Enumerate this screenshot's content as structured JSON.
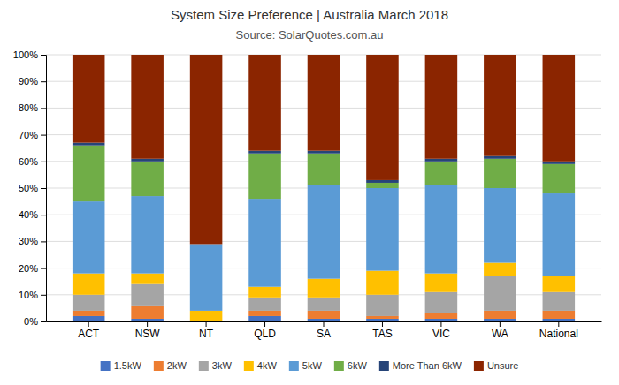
{
  "chart_data": {
    "type": "bar",
    "stacked": true,
    "title": "System Size Preference  |  Australia March 2018",
    "subtitle": "Source: SolarQuotes.com.au",
    "categories": [
      "ACT",
      "NSW",
      "NT",
      "QLD",
      "SA",
      "TAS",
      "VIC",
      "WA",
      "National"
    ],
    "series": [
      {
        "name": "1.5kW",
        "color": "#4472C4",
        "values": [
          2,
          1,
          0,
          2,
          1,
          1,
          1,
          1,
          1
        ]
      },
      {
        "name": "2kW",
        "color": "#ED7D31",
        "values": [
          2,
          5,
          0,
          2,
          3,
          1,
          2,
          3,
          3
        ]
      },
      {
        "name": "3kW",
        "color": "#A5A5A5",
        "values": [
          6,
          8,
          0,
          5,
          5,
          8,
          8,
          13,
          7
        ]
      },
      {
        "name": "4kW",
        "color": "#FFC000",
        "values": [
          8,
          4,
          4,
          4,
          7,
          9,
          7,
          5,
          6
        ]
      },
      {
        "name": "5kW",
        "color": "#5B9BD5",
        "values": [
          27,
          29,
          25,
          33,
          35,
          31,
          33,
          28,
          31
        ]
      },
      {
        "name": "6kW",
        "color": "#70AD47",
        "values": [
          21,
          13,
          0,
          17,
          12,
          2,
          9,
          11,
          11
        ]
      },
      {
        "name": "More Than 6kW",
        "color": "#264478",
        "values": [
          1,
          1,
          0,
          1,
          1,
          1,
          1,
          1,
          1
        ]
      },
      {
        "name": "Unsure",
        "color": "#8B2500",
        "values": [
          33,
          39,
          71,
          36,
          36,
          47,
          39,
          38,
          40
        ]
      }
    ],
    "ylim": [
      0,
      100
    ],
    "yticks": [
      {
        "value": 0,
        "label": "0%"
      },
      {
        "value": 10,
        "label": "10%"
      },
      {
        "value": 20,
        "label": "20%"
      },
      {
        "value": 30,
        "label": "30%"
      },
      {
        "value": 40,
        "label": "40%"
      },
      {
        "value": 50,
        "label": "50%"
      },
      {
        "value": 60,
        "label": "60%"
      },
      {
        "value": 70,
        "label": "70%"
      },
      {
        "value": 80,
        "label": "80%"
      },
      {
        "value": 90,
        "label": "90%"
      },
      {
        "value": 100,
        "label": "100%"
      }
    ],
    "grid": true,
    "legend": "bottom"
  }
}
